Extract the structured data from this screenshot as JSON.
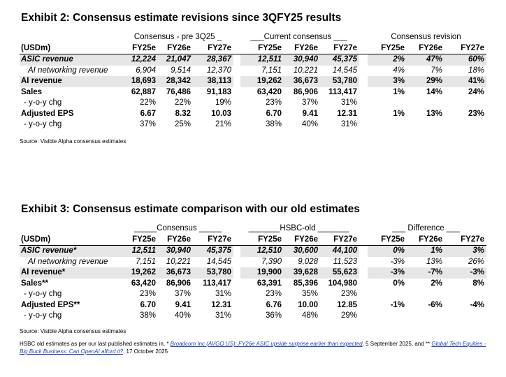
{
  "exhibit2": {
    "title": "Exhibit 2: Consensus estimate revisions since 3QFY25 results",
    "groups": [
      "Consensus - pre 3Q25 _",
      "___Current consensus ___",
      "Consensus revision"
    ],
    "unit": "(USDm)",
    "years": [
      "FY25e",
      "FY26e",
      "FY27e",
      "FY25e",
      "FY26e",
      "FY27e",
      "FY25e",
      "FY26e",
      "FY27e"
    ],
    "rows": [
      {
        "label": "ASIC revenue",
        "v": [
          "12,224",
          "21,047",
          "28,367",
          "12,511",
          "30,940",
          "45,375",
          "2%",
          "47%",
          "60%"
        ]
      },
      {
        "label": "AI networking revenue",
        "v": [
          "6,904",
          "9,514",
          "12,370",
          "7,151",
          "10,221",
          "14,545",
          "4%",
          "7%",
          "18%"
        ]
      },
      {
        "label": "AI revenue",
        "v": [
          "18,693",
          "28,342",
          "38,113",
          "19,262",
          "36,673",
          "53,780",
          "3%",
          "29%",
          "41%"
        ]
      },
      {
        "label": "Sales",
        "v": [
          "62,887",
          "76,486",
          "91,183",
          "63,420",
          "86,906",
          "113,417",
          "1%",
          "14%",
          "24%"
        ]
      },
      {
        "label": "- y-o-y chg",
        "v": [
          "22%",
          "22%",
          "19%",
          "23%",
          "37%",
          "31%",
          "",
          "",
          ""
        ]
      },
      {
        "label": "Adjusted EPS",
        "v": [
          "6.67",
          "8.32",
          "10.03",
          "6.70",
          "9.41",
          "12.31",
          "1%",
          "13%",
          "23%"
        ]
      },
      {
        "label": "- y-o-y chg",
        "v": [
          "37%",
          "25%",
          "21%",
          "38%",
          "40%",
          "31%",
          "",
          "",
          ""
        ]
      }
    ],
    "source": "Source: Visible Alpha consensus estimates"
  },
  "exhibit3": {
    "title": "Exhibit 3: Consensus estimate comparison with our old estimates",
    "groups": [
      "_____Consensus _____",
      "_______HSBC-old _______",
      "___ Difference ___"
    ],
    "unit": "(USDm)",
    "years": [
      "FY25e",
      "FY26e",
      "FY27e",
      "FY25e",
      "FY26e",
      "FY27e",
      "FY25e",
      "FY26e",
      "FY27e"
    ],
    "rows": [
      {
        "label": "ASIC revenue*",
        "v": [
          "12,511",
          "30,940",
          "45,375",
          "12,510",
          "30,600",
          "44,100",
          "0%",
          "1%",
          "3%"
        ]
      },
      {
        "label": "AI networking revenue",
        "v": [
          "7,151",
          "10,221",
          "14,545",
          "7,390",
          "9,028",
          "11,523",
          "-3%",
          "13%",
          "26%"
        ]
      },
      {
        "label": "AI revenue*",
        "v": [
          "19,262",
          "36,673",
          "53,780",
          "19,900",
          "39,628",
          "55,623",
          "-3%",
          "-7%",
          "-3%"
        ]
      },
      {
        "label": "Sales**",
        "v": [
          "63,420",
          "86,906",
          "113,417",
          "63,391",
          "85,396",
          "104,980",
          "0%",
          "2%",
          "8%"
        ]
      },
      {
        "label": "- y-o-y chg",
        "v": [
          "23%",
          "37%",
          "31%",
          "23%",
          "35%",
          "23%",
          "",
          "",
          ""
        ]
      },
      {
        "label": "Adjusted EPS**",
        "v": [
          "6.70",
          "9.41",
          "12.31",
          "6.76",
          "10.00",
          "12.85",
          "-1%",
          "-6%",
          "-4%"
        ]
      },
      {
        "label": "- y-o-y chg",
        "v": [
          "38%",
          "40%",
          "31%",
          "36%",
          "48%",
          "29%",
          "",
          "",
          ""
        ]
      }
    ],
    "source": "Source: Visible Alpha consensus estimates"
  },
  "footnote": {
    "prefix": "HSBC old estimates as per our last published estimates in, * ",
    "link1": "Broadcom Inc (AVGO US): FY26e ASIC upside surprise earlier than expected",
    "mid": ", 5 September 2025, and ** ",
    "link2": "Global Tech Equities - Big Buck Business: Can OpenAI afford it?",
    "suffix": ", 17 October 2025"
  }
}
